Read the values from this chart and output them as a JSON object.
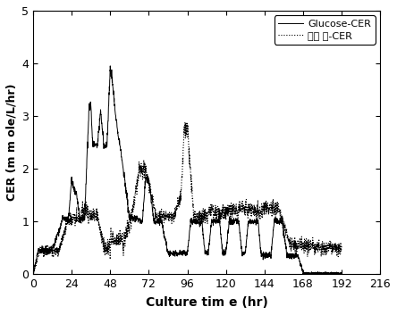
{
  "title": "",
  "xlabel": "Culture tim e (hr)",
  "ylabel": "CER (m m ole/L/hr)",
  "xlim": [
    0,
    216
  ],
  "ylim": [
    0,
    5
  ],
  "xticks": [
    0,
    24,
    48,
    72,
    96,
    120,
    144,
    168,
    192,
    216
  ],
  "yticks": [
    0,
    1,
    2,
    3,
    4,
    5
  ],
  "legend1": "Glucose-CER",
  "legend2": "감귈 박-CER",
  "line1_color": "#000000",
  "line2_color": "#000000",
  "background": "#ffffff",
  "figsize": [
    4.44,
    3.53
  ],
  "dpi": 100
}
